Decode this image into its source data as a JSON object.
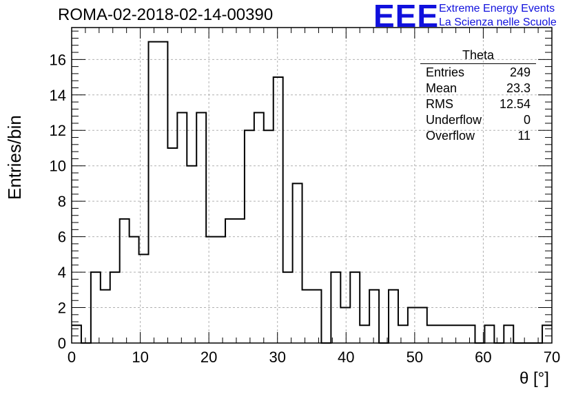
{
  "header": {
    "title": "ROMA-02-2018-02-14-00390",
    "logo_mark": "EEE",
    "logo_line1": "Extreme Energy Events",
    "logo_line2": "La Scienza nelle Scuole"
  },
  "stats": {
    "name": "Theta",
    "rows": [
      {
        "label": "Entries",
        "value": "249"
      },
      {
        "label": "Mean",
        "value": "23.3"
      },
      {
        "label": "RMS",
        "value": "12.54"
      },
      {
        "label": "Underflow",
        "value": "0"
      },
      {
        "label": "Overflow",
        "value": "11"
      }
    ]
  },
  "colors": {
    "logo": "#1010dd",
    "line": "#000000",
    "grid": "#b0b0b0"
  },
  "chart_data": {
    "type": "histogram",
    "xlabel": "θ [°]",
    "ylabel": "Entries/bin",
    "xlim": [
      0,
      70
    ],
    "ylim": [
      0,
      17.8
    ],
    "bin_width": 1.4,
    "bin_edges_start": 0,
    "values": [
      1,
      0,
      4,
      3,
      4,
      7,
      6,
      5,
      17,
      17,
      11,
      13,
      10,
      13,
      6,
      6,
      7,
      7,
      12,
      13,
      12,
      15,
      4,
      9,
      3,
      3,
      0,
      4,
      2,
      4,
      1,
      3,
      0,
      3,
      1,
      2,
      2,
      1,
      1,
      1,
      1,
      1,
      0,
      1,
      0,
      1,
      0,
      0,
      0,
      1
    ],
    "xticks": [
      0,
      10,
      20,
      30,
      40,
      50,
      60,
      70
    ],
    "yticks": [
      0,
      2,
      4,
      6,
      8,
      10,
      12,
      14,
      16
    ],
    "grid": true
  }
}
